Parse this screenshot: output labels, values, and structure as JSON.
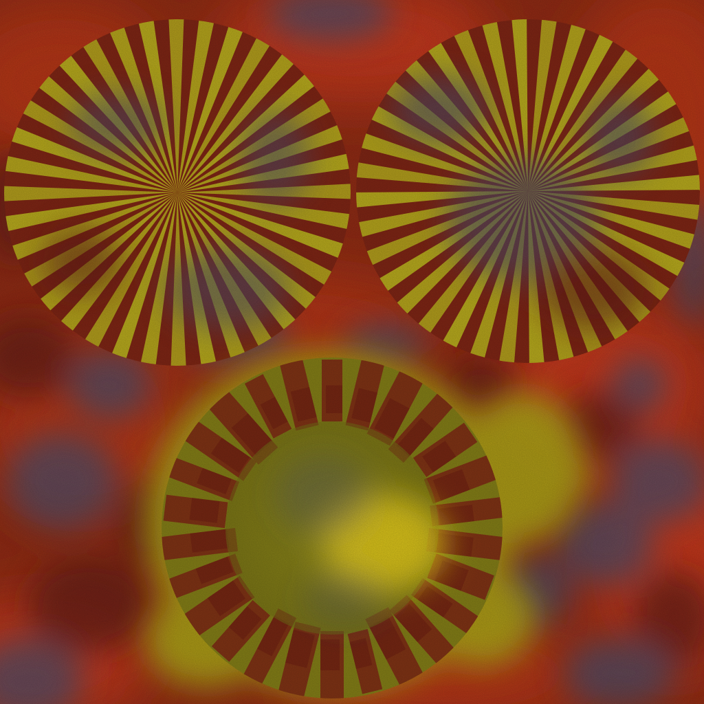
{
  "texture": {
    "palette": {
      "background_base": "#8a2a14",
      "background_bright": "#c2381a",
      "background_dark": "#5e1e12",
      "smoke_blue": "#4a4c66",
      "stripe_yellow": "#b4ac1c",
      "stripe_red": "#7a2414",
      "stain_yellow": "#c8bc1e",
      "stain_bright": "#e6cc18"
    },
    "sunbursts": [
      {
        "name": "sunburst-left",
        "ray_pairs": 18
      },
      {
        "name": "sunburst-right",
        "ray_pairs": 18
      }
    ],
    "ring": {
      "name": "notched-ring",
      "notch_count": 26
    },
    "icons": [
      "sunburst-disc",
      "notched-ring-disc",
      "yellow-stain-blob",
      "smoke-blotch"
    ]
  }
}
